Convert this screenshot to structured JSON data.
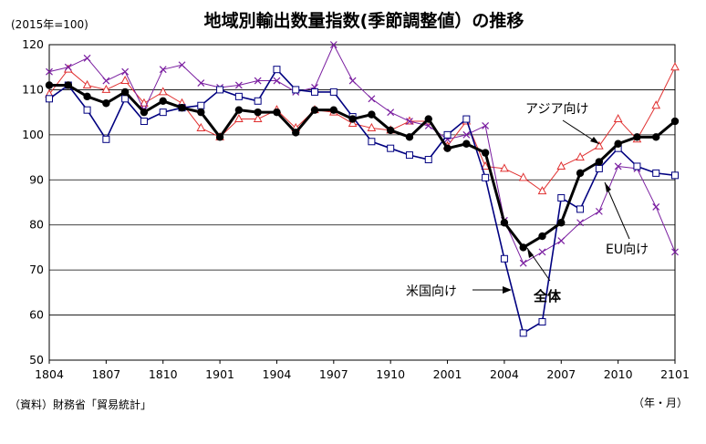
{
  "chart_data": {
    "type": "line",
    "title": "地域別輸出数量指数(季節調整値）の推移",
    "unit_note": "(2015年=100)",
    "source": "（資料）財務省「貿易統計」",
    "x_unit": "（年・月）",
    "ylim": [
      50,
      120
    ],
    "yticks": [
      "50",
      "60",
      "70",
      "80",
      "90",
      "100",
      "110",
      "120"
    ],
    "xticks": [
      "1804",
      "1807",
      "1810",
      "1901",
      "1904",
      "1907",
      "1910",
      "2001",
      "2004",
      "2007",
      "2010",
      "2101"
    ],
    "grid": true,
    "x": [
      "1804",
      "1805",
      "1806",
      "1807",
      "1808",
      "1809",
      "1810",
      "1811",
      "1812",
      "1901",
      "1902",
      "1903",
      "1904",
      "1905",
      "1906",
      "1907",
      "1908",
      "1909",
      "1910",
      "1911",
      "1912",
      "2001",
      "2002",
      "2003",
      "2004",
      "2005",
      "2006",
      "2007",
      "2008",
      "2009",
      "2010",
      "2011",
      "2012",
      "2101"
    ],
    "series": [
      {
        "name": "全体",
        "color": "#000000",
        "marker": "filled-circle",
        "values": [
          111,
          111,
          108.5,
          107,
          109.5,
          105,
          107.5,
          106,
          105,
          99.5,
          105.5,
          105,
          105,
          100.5,
          105.5,
          105.5,
          103.5,
          104.5,
          101,
          99.5,
          103.5,
          97,
          98,
          96,
          80.5,
          75,
          77.5,
          80.5,
          91.5,
          94,
          98,
          99.5,
          99.5,
          103
        ]
      },
      {
        "name": "アジア向け",
        "color": "#e03030",
        "marker": "hollow-triangle",
        "values": [
          109,
          114.5,
          111,
          110,
          112,
          107,
          109.5,
          107,
          101.5,
          99.5,
          103.5,
          103.5,
          105.5,
          101.5,
          105.5,
          105,
          102.5,
          101.5,
          101,
          103,
          103,
          97.5,
          103,
          93,
          92.5,
          90.5,
          87.5,
          93,
          95,
          97.5,
          103.5,
          99,
          106.5,
          115
        ]
      },
      {
        "name": "米国向け",
        "color": "#000080",
        "marker": "hollow-square",
        "values": [
          108,
          111,
          105.5,
          99,
          108,
          103,
          105,
          106,
          106.5,
          110,
          108.5,
          107.5,
          114.5,
          110,
          109.5,
          109.5,
          104,
          98.5,
          97,
          95.5,
          94.5,
          100,
          103.5,
          90.5,
          72.5,
          56,
          58.5,
          86,
          83.5,
          92.5,
          97,
          93,
          91.5,
          91
        ]
      },
      {
        "name": "EU向け",
        "color": "#7a1ea0",
        "marker": "x",
        "values": [
          114,
          115,
          117,
          112,
          114,
          105.5,
          114.5,
          115.5,
          111.5,
          110.5,
          111,
          112,
          112,
          109.5,
          110.5,
          120,
          112,
          108,
          105,
          103,
          102,
          99,
          100,
          102,
          81,
          71.5,
          74,
          76.5,
          80.5,
          83,
          93,
          92.5,
          84,
          74
        ]
      }
    ],
    "annotations": [
      "アジア向け",
      "EU向け",
      "米国向け",
      "全体"
    ]
  }
}
